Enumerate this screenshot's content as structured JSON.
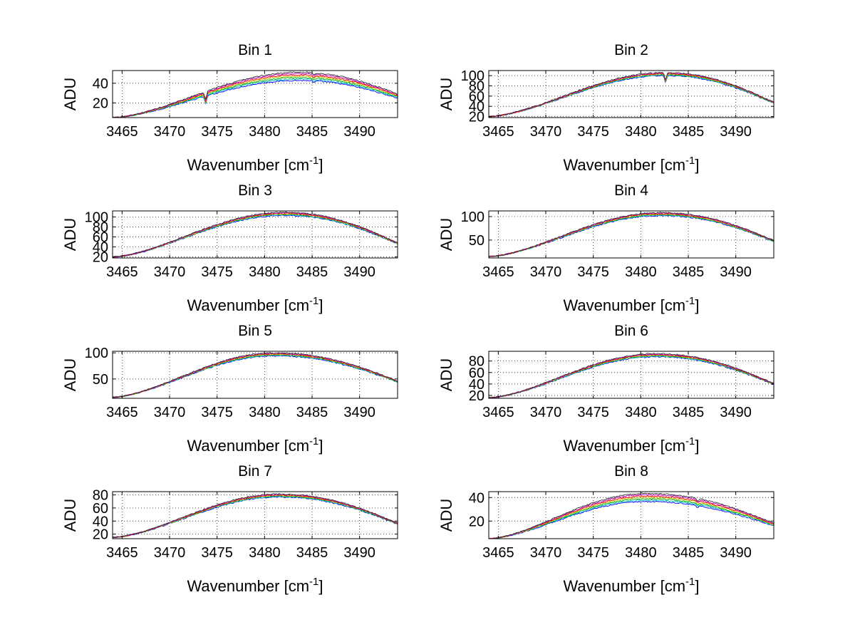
{
  "figure": {
    "colors": [
      "#0000ff",
      "#00bfbf",
      "#00aa00",
      "#bfbf00",
      "#ff0000",
      "#bf00bf",
      "#333333"
    ]
  },
  "chart_data": [
    {
      "type": "line",
      "title": "Bin 1",
      "xlabel": "Wavenumber [cm",
      "xlabel_sup": "-1",
      "xlabel_tail": "]",
      "ylabel": "ADU",
      "xlim": [
        3464,
        3494
      ],
      "ylim": [
        5,
        53
      ],
      "xticks": [
        3465,
        3470,
        3475,
        3480,
        3485,
        3490
      ],
      "yticks": [
        20,
        40
      ],
      "grid": true,
      "profile": {
        "start": 5,
        "peak": 47,
        "end": 27,
        "peak_x": 3483.5,
        "dips": [
          [
            3473.8,
            -8
          ],
          [
            3485.2,
            -2
          ]
        ]
      }
    },
    {
      "type": "line",
      "title": "Bin 2",
      "xlabel": "Wavenumber [cm",
      "xlabel_sup": "-1",
      "xlabel_tail": "]",
      "ylabel": "ADU",
      "xlim": [
        3464,
        3494
      ],
      "ylim": [
        18,
        110
      ],
      "xticks": [
        3465,
        3470,
        3475,
        3480,
        3485,
        3490
      ],
      "yticks": [
        20,
        40,
        60,
        80,
        100
      ],
      "grid": true,
      "profile": {
        "start": 20,
        "peak": 103,
        "end": 47,
        "peak_x": 3482.5,
        "dips": [
          [
            3482.6,
            -14
          ]
        ]
      }
    },
    {
      "type": "line",
      "title": "Bin 3",
      "xlabel": "Wavenumber [cm",
      "xlabel_sup": "-1",
      "xlabel_tail": "]",
      "ylabel": "ADU",
      "xlim": [
        3464,
        3494
      ],
      "ylim": [
        18,
        112
      ],
      "xticks": [
        3465,
        3470,
        3475,
        3480,
        3485,
        3490
      ],
      "yticks": [
        20,
        40,
        60,
        80,
        100
      ],
      "grid": true,
      "profile": {
        "start": 20,
        "peak": 106,
        "end": 47,
        "peak_x": 3482,
        "dips": []
      }
    },
    {
      "type": "line",
      "title": "Bin 4",
      "xlabel": "Wavenumber [cm",
      "xlabel_sup": "-1",
      "xlabel_tail": "]",
      "ylabel": "ADU",
      "xlim": [
        3464,
        3494
      ],
      "ylim": [
        12,
        112
      ],
      "xticks": [
        3465,
        3470,
        3475,
        3480,
        3485,
        3490
      ],
      "yticks": [
        50,
        100
      ],
      "grid": true,
      "profile": {
        "start": 15,
        "peak": 105,
        "end": 48,
        "peak_x": 3482,
        "dips": []
      }
    },
    {
      "type": "line",
      "title": "Bin 5",
      "xlabel": "Wavenumber [cm",
      "xlabel_sup": "-1",
      "xlabel_tail": "]",
      "ylabel": "ADU",
      "xlim": [
        3464,
        3494
      ],
      "ylim": [
        13,
        103
      ],
      "xticks": [
        3465,
        3470,
        3475,
        3480,
        3485,
        3490
      ],
      "yticks": [
        50,
        100
      ],
      "grid": true,
      "profile": {
        "start": 15,
        "peak": 97,
        "end": 45,
        "peak_x": 3481,
        "dips": []
      }
    },
    {
      "type": "line",
      "title": "Bin 6",
      "xlabel": "Wavenumber [cm",
      "xlabel_sup": "-1",
      "xlabel_tail": "]",
      "ylabel": "ADU",
      "xlim": [
        3464,
        3494
      ],
      "ylim": [
        15,
        97
      ],
      "xticks": [
        3465,
        3470,
        3475,
        3480,
        3485,
        3490
      ],
      "yticks": [
        20,
        40,
        60,
        80
      ],
      "grid": true,
      "profile": {
        "start": 16,
        "peak": 90,
        "end": 40,
        "peak_x": 3481.5,
        "dips": []
      }
    },
    {
      "type": "line",
      "title": "Bin 7",
      "xlabel": "Wavenumber [cm",
      "xlabel_sup": "-1",
      "xlabel_tail": "]",
      "ylabel": "ADU",
      "xlim": [
        3464,
        3494
      ],
      "ylim": [
        13,
        85
      ],
      "xticks": [
        3465,
        3470,
        3475,
        3480,
        3485,
        3490
      ],
      "yticks": [
        20,
        40,
        60,
        80
      ],
      "grid": true,
      "profile": {
        "start": 15,
        "peak": 79,
        "end": 36,
        "peak_x": 3481.5,
        "dips": []
      }
    },
    {
      "type": "line",
      "title": "Bin 8",
      "xlabel": "Wavenumber [cm",
      "xlabel_sup": "-1",
      "xlabel_tail": "]",
      "ylabel": "ADU",
      "xlim": [
        3464,
        3494
      ],
      "ylim": [
        5,
        45
      ],
      "xticks": [
        3465,
        3470,
        3475,
        3480,
        3485,
        3490
      ],
      "yticks": [
        20,
        40
      ],
      "grid": true,
      "profile": {
        "start": 5,
        "peak": 40,
        "end": 17,
        "peak_x": 3480.5,
        "dips": [
          [
            3486,
            -2
          ]
        ]
      }
    }
  ]
}
